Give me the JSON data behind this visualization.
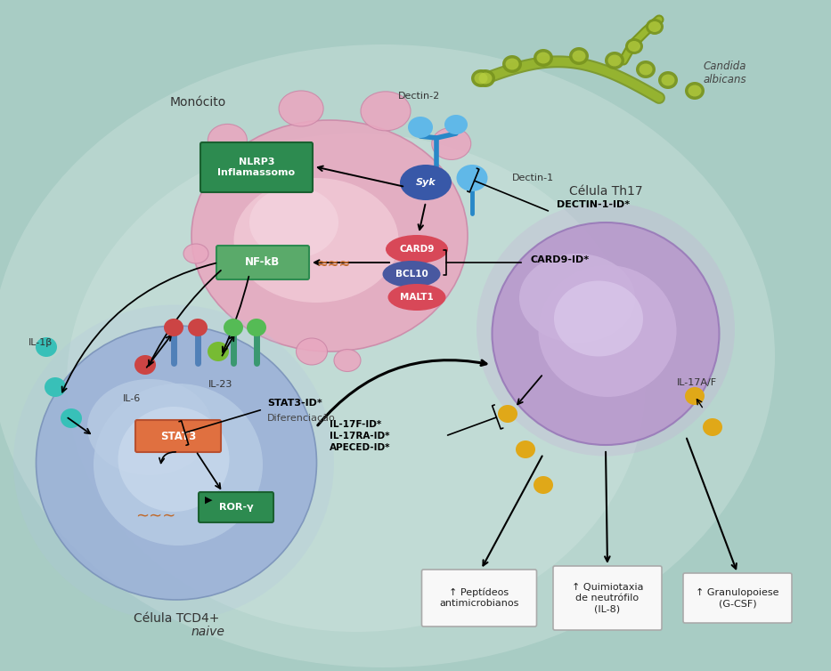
{
  "bg_color": "#a8ccc4",
  "monocyte_label": "Monócito",
  "th17_label": "Célula Th17",
  "tcd4_label": "Célula TCD4+",
  "tcd4_label2": "naive",
  "candida_label": "Candida\nalbicans",
  "dectin2_label": "Dectin-2",
  "dectin1_label": "Dectin-1",
  "syk_label": "Syk",
  "nlrp3_label": "NLRP3\nInflamassomo",
  "nfkb_label": "NF-kB",
  "card9_label": "CARD9",
  "bcl10_label": "BCL10",
  "malt1_label": "MALT1",
  "stat3_label": "STAT3",
  "rory_label": "ROR-γ",
  "il1b_label": "IL-1β",
  "il6_label": "IL-6",
  "il23_label": "IL-23",
  "stat3id_label": "STAT3-ID*",
  "diferenciacao_label": "Diferenciação",
  "dectin1id_label": "DECTIN-1-ID*",
  "card9id_label": "CARD9-ID*",
  "il17fid_label": "IL-17F-ID*\nIL-17RA-ID*\nAPECED-ID*",
  "il17af_label": "IL-17A/F",
  "peptideos_label": "↑ Peptídeos\nantimicrobianos",
  "quimiotaxia_label": "↑ Quimiotaxia\nde neutrófilo\n(IL-8)",
  "granulopoiese_label": "↑ Granulopoiese\n(G-CSF)"
}
